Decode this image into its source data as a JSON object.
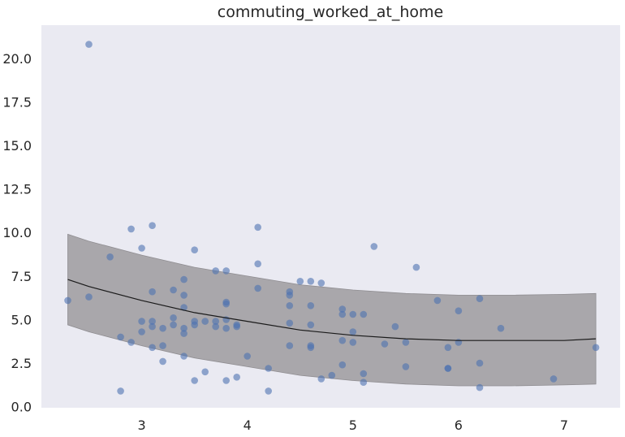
{
  "chart_data": {
    "type": "scatter",
    "title": "commuting_worked_at_home",
    "xlabel": "",
    "ylabel": "",
    "xlim": [
      2.05,
      7.53
    ],
    "ylim": [
      -0.06,
      21.9
    ],
    "x_ticks": [
      "3",
      "4",
      "5",
      "6",
      "7"
    ],
    "x_tick_values": [
      3,
      4,
      5,
      6,
      7
    ],
    "y_ticks": [
      "0.0",
      "2.5",
      "5.0",
      "7.5",
      "10.0",
      "12.5",
      "15.0",
      "17.5",
      "20.0"
    ],
    "y_tick_values": [
      0,
      2.5,
      5,
      7.5,
      10,
      12.5,
      15,
      17.5,
      20
    ],
    "grid": false,
    "background": "#EAEAF2",
    "point_color": "#4C72B0",
    "band_color": "#A9A7AB",
    "line_color": "#1a1a1a",
    "points": [
      [
        2.3,
        6.1
      ],
      [
        2.5,
        20.8
      ],
      [
        2.5,
        6.3
      ],
      [
        2.7,
        8.6
      ],
      [
        2.8,
        4.0
      ],
      [
        2.8,
        0.9
      ],
      [
        2.9,
        10.2
      ],
      [
        2.9,
        3.7
      ],
      [
        3.0,
        9.1
      ],
      [
        3.0,
        4.9
      ],
      [
        3.0,
        4.3
      ],
      [
        3.1,
        10.4
      ],
      [
        3.1,
        6.6
      ],
      [
        3.1,
        4.9
      ],
      [
        3.1,
        4.6
      ],
      [
        3.1,
        3.4
      ],
      [
        3.2,
        4.5
      ],
      [
        3.2,
        3.5
      ],
      [
        3.2,
        2.6
      ],
      [
        3.3,
        6.7
      ],
      [
        3.3,
        5.1
      ],
      [
        3.3,
        4.7
      ],
      [
        3.4,
        7.3
      ],
      [
        3.4,
        6.4
      ],
      [
        3.4,
        5.7
      ],
      [
        3.4,
        4.5
      ],
      [
        3.4,
        4.2
      ],
      [
        3.4,
        2.9
      ],
      [
        3.5,
        9.0
      ],
      [
        3.5,
        4.9
      ],
      [
        3.5,
        4.7
      ],
      [
        3.5,
        1.5
      ],
      [
        3.6,
        4.9
      ],
      [
        3.6,
        2.0
      ],
      [
        3.7,
        7.8
      ],
      [
        3.7,
        4.9
      ],
      [
        3.7,
        4.6
      ],
      [
        3.8,
        7.8
      ],
      [
        3.8,
        6.0
      ],
      [
        3.8,
        5.9
      ],
      [
        3.8,
        5.0
      ],
      [
        3.8,
        4.5
      ],
      [
        3.8,
        1.5
      ],
      [
        3.9,
        4.7
      ],
      [
        3.9,
        4.6
      ],
      [
        3.9,
        1.7
      ],
      [
        4.0,
        2.9
      ],
      [
        4.1,
        10.3
      ],
      [
        4.1,
        8.2
      ],
      [
        4.1,
        6.8
      ],
      [
        4.2,
        2.2
      ],
      [
        4.2,
        0.9
      ],
      [
        4.4,
        6.6
      ],
      [
        4.4,
        6.4
      ],
      [
        4.4,
        5.8
      ],
      [
        4.4,
        4.8
      ],
      [
        4.4,
        3.5
      ],
      [
        4.5,
        7.2
      ],
      [
        4.6,
        7.2
      ],
      [
        4.6,
        5.8
      ],
      [
        4.6,
        4.7
      ],
      [
        4.6,
        3.5
      ],
      [
        4.6,
        3.4
      ],
      [
        4.7,
        7.1
      ],
      [
        4.7,
        1.6
      ],
      [
        4.8,
        1.8
      ],
      [
        4.9,
        5.6
      ],
      [
        4.9,
        5.3
      ],
      [
        4.9,
        3.8
      ],
      [
        4.9,
        2.4
      ],
      [
        5.0,
        5.3
      ],
      [
        5.0,
        4.3
      ],
      [
        5.0,
        3.7
      ],
      [
        5.1,
        5.3
      ],
      [
        5.1,
        1.9
      ],
      [
        5.1,
        1.4
      ],
      [
        5.2,
        9.2
      ],
      [
        5.3,
        3.6
      ],
      [
        5.4,
        4.6
      ],
      [
        5.5,
        3.7
      ],
      [
        5.5,
        2.3
      ],
      [
        5.6,
        8.0
      ],
      [
        5.8,
        6.1
      ],
      [
        5.9,
        3.4
      ],
      [
        5.9,
        2.2
      ],
      [
        5.9,
        2.2
      ],
      [
        6.0,
        5.5
      ],
      [
        6.0,
        3.7
      ],
      [
        6.2,
        6.2
      ],
      [
        6.2,
        2.5
      ],
      [
        6.2,
        1.1
      ],
      [
        6.4,
        4.5
      ],
      [
        6.9,
        1.6
      ],
      [
        7.3,
        3.4
      ]
    ],
    "fit": {
      "x": [
        2.3,
        2.5,
        3.0,
        3.5,
        4.0,
        4.5,
        5.0,
        5.5,
        6.0,
        6.5,
        7.0,
        7.3
      ],
      "y": [
        7.3,
        6.9,
        6.1,
        5.4,
        4.9,
        4.4,
        4.1,
        3.9,
        3.8,
        3.8,
        3.8,
        3.9
      ],
      "lower": [
        4.7,
        4.3,
        3.5,
        2.8,
        2.3,
        1.8,
        1.5,
        1.3,
        1.2,
        1.2,
        1.25,
        1.3
      ],
      "upper": [
        9.9,
        9.5,
        8.7,
        8.0,
        7.5,
        7.0,
        6.7,
        6.5,
        6.4,
        6.4,
        6.45,
        6.5
      ]
    }
  }
}
